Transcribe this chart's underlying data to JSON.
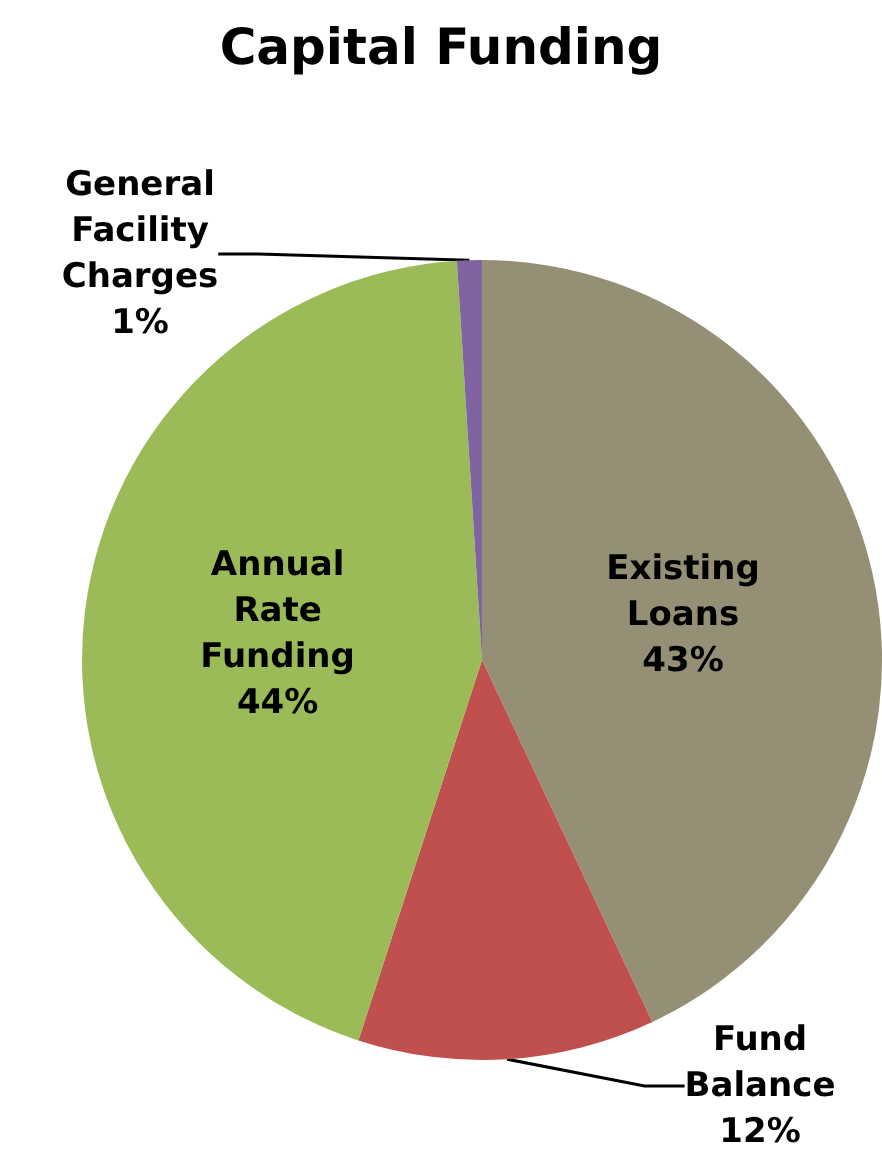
{
  "chart_data": {
    "type": "pie",
    "title": "Capital Funding",
    "categories": [
      "Existing Loans",
      "Fund Balance",
      "Annual Rate Funding",
      "General Facility Charges"
    ],
    "values": [
      43,
      12,
      44,
      1
    ],
    "value_labels": [
      "43%",
      "12%",
      "44%",
      "1%"
    ],
    "colors": [
      "#948f75",
      "#c0504d",
      "#9bbb59",
      "#8064a2"
    ],
    "legend": false
  }
}
